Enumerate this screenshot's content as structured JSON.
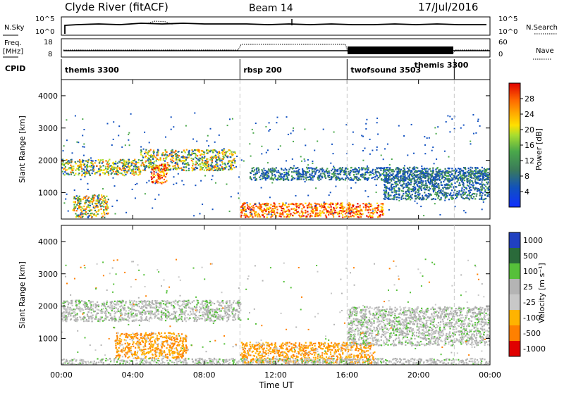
{
  "header": {
    "station": "Clyde River (fitACF)",
    "beam": "Beam 14",
    "date": "17/Jul/2016"
  },
  "noise_panel": {
    "left_label": "N.Sky",
    "left_ticks": [
      "10^5",
      "10^0"
    ],
    "right_label": "N.Search",
    "right_ticks": [
      "10^5",
      "10^0"
    ]
  },
  "freq_panel": {
    "left_label": "Freq.",
    "left_unit": "[MHz]",
    "left_ticks": [
      "18",
      "8"
    ],
    "right_label": "Nave",
    "right_ticks": [
      "60",
      "0"
    ]
  },
  "cpid": {
    "label": "CPID",
    "segments": [
      {
        "label": "themis 3300",
        "start_hour": 0
      },
      {
        "label": "rbsp 200",
        "start_hour": 10
      },
      {
        "label": "twofsound 3503",
        "start_hour": 16
      },
      {
        "label": "themis 3300",
        "start_hour": 22
      }
    ]
  },
  "power_panel": {
    "ylabel": "Slant Range [km]",
    "yticks": [
      "4000",
      "3000",
      "2000",
      "1000"
    ],
    "colorbar_label": "Power [dB]",
    "colorbar_ticks": [
      "28",
      "24",
      "20",
      "16",
      "12",
      "8",
      "4"
    ]
  },
  "velocity_panel": {
    "ylabel": "Slant Range [km]",
    "yticks": [
      "4000",
      "3000",
      "2000",
      "1000"
    ],
    "colorbar_label": "Velocity  [m s⁻¹]",
    "colorbar_ticks": [
      "1000",
      "500",
      "100",
      "25",
      "-25",
      "-100",
      "-500",
      "-1000"
    ]
  },
  "x_axis": {
    "ticks": [
      "00:00",
      "04:00",
      "08:00",
      "12:00",
      "16:00",
      "20:00",
      "00:00"
    ],
    "label": "Time UT"
  },
  "chart_data": {
    "type": "heatmap",
    "x_range_hours": [
      0,
      24
    ],
    "y_range_km": [
      180,
      4500
    ],
    "mode_change_hours": [
      10,
      16,
      22
    ],
    "power_colors": [
      "#e00000",
      "#ff6a00",
      "#ffa800",
      "#ffe000",
      "#a8dd30",
      "#4aa84a",
      "#3a7a5a",
      "#1050c0"
    ],
    "velocity_colors": [
      "#2040c0",
      "#2a6a3a",
      "#56c03a",
      "#b4b4b4",
      "#c8c8c8",
      "#ffb300",
      "#ff8000",
      "#e00000"
    ],
    "power_bands": [
      {
        "start_hour": 0.0,
        "end_hour": 4.4,
        "range_low_km": 1550,
        "range_high_km": 2050,
        "level": "mid"
      },
      {
        "start_hour": 4.4,
        "end_hour": 9.7,
        "range_low_km": 1700,
        "range_high_km": 2350,
        "level": "mid"
      },
      {
        "start_hour": 5.0,
        "end_hour": 5.9,
        "range_low_km": 1300,
        "range_high_km": 1900,
        "level": "high"
      },
      {
        "start_hour": 0.6,
        "end_hour": 2.6,
        "range_low_km": 250,
        "range_high_km": 950,
        "level": "mid"
      },
      {
        "start_hour": 10.0,
        "end_hour": 16.0,
        "range_low_km": 250,
        "range_high_km": 700,
        "level": "high"
      },
      {
        "start_hour": 16.0,
        "end_hour": 18.0,
        "range_low_km": 250,
        "range_high_km": 700,
        "level": "high"
      },
      {
        "start_hour": 10.5,
        "end_hour": 24.0,
        "range_low_km": 1400,
        "range_high_km": 1800,
        "level": "low"
      },
      {
        "start_hour": 18.0,
        "end_hour": 24.0,
        "range_low_km": 800,
        "range_high_km": 1700,
        "level": "low"
      }
    ],
    "velocity_bands": [
      {
        "start_hour": 0.0,
        "end_hour": 10.0,
        "range_low_km": 1550,
        "range_high_km": 2200,
        "level": "slow"
      },
      {
        "start_hour": 10.0,
        "end_hour": 17.5,
        "range_low_km": 250,
        "range_high_km": 900,
        "level": "negative"
      },
      {
        "start_hour": 3.0,
        "end_hour": 7.0,
        "range_low_km": 400,
        "range_high_km": 1200,
        "level": "negative"
      },
      {
        "start_hour": 0.0,
        "end_hour": 24.0,
        "range_low_km": 180,
        "range_high_km": 400,
        "level": "slow"
      },
      {
        "start_hour": 16.0,
        "end_hour": 24.0,
        "range_low_km": 800,
        "range_high_km": 2000,
        "level": "slow"
      }
    ]
  }
}
